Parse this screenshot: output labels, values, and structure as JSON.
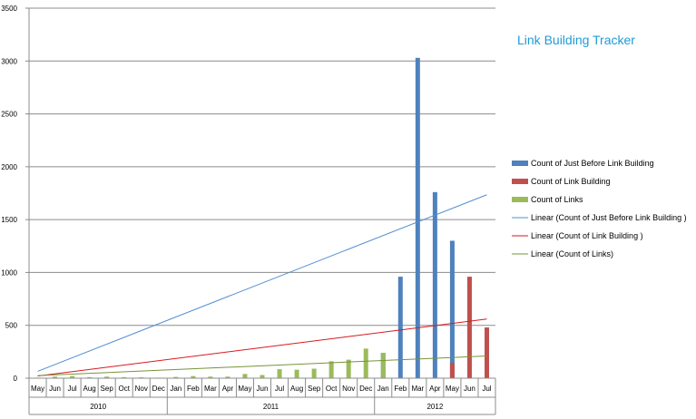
{
  "chart_data": {
    "type": "bar",
    "title": "Link Building Tracker",
    "xlabel": "",
    "ylabel": "",
    "ylim": [
      0,
      3500
    ],
    "yticks": [
      0,
      500,
      1000,
      1500,
      2000,
      2500,
      3000,
      3500
    ],
    "grid": true,
    "legend_position": "right",
    "categories": [
      "May",
      "Jun",
      "Jul",
      "Aug",
      "Sep",
      "Oct",
      "Nov",
      "Dec",
      "Jan",
      "Feb",
      "Mar",
      "Apr",
      "May",
      "Jun",
      "Jul",
      "Aug",
      "Sep",
      "Oct",
      "Nov",
      "Dec",
      "Jan",
      "Feb",
      "Mar",
      "Apr",
      "May",
      "Jun",
      "Jul"
    ],
    "year_groups": [
      {
        "label": "2010",
        "count": 8
      },
      {
        "label": "2011",
        "count": 12
      },
      {
        "label": "2012",
        "count": 7
      }
    ],
    "series": [
      {
        "name": "Count of Just Before Link Building",
        "color": "#4f81bd",
        "values": [
          null,
          null,
          null,
          null,
          null,
          null,
          null,
          null,
          null,
          null,
          null,
          null,
          null,
          null,
          null,
          null,
          null,
          null,
          null,
          null,
          240,
          960,
          3030,
          1760,
          1300,
          null,
          null
        ]
      },
      {
        "name": "Count of Link Building",
        "color": "#c0504d",
        "values": [
          null,
          null,
          null,
          null,
          null,
          null,
          null,
          null,
          null,
          null,
          null,
          null,
          null,
          null,
          null,
          null,
          null,
          null,
          null,
          null,
          null,
          null,
          null,
          null,
          145,
          960,
          480
        ]
      },
      {
        "name": "Count of Links",
        "color": "#9bbb59",
        "values": [
          5,
          15,
          20,
          10,
          15,
          10,
          8,
          5,
          12,
          20,
          15,
          15,
          40,
          30,
          85,
          80,
          90,
          160,
          175,
          280,
          240,
          null,
          null,
          null,
          null,
          null,
          null
        ]
      }
    ],
    "trendlines": [
      {
        "name": "Linear (Count of Just Before Link Building )",
        "color": "#4f8fd0",
        "start": 65,
        "end": 1735
      },
      {
        "name": "Linear (Count of Link Building )",
        "color": "#d9191c",
        "start": 20,
        "end": 560
      },
      {
        "name": "Linear (Count of Links)",
        "color": "#77933c",
        "start": 25,
        "end": 210
      }
    ]
  }
}
